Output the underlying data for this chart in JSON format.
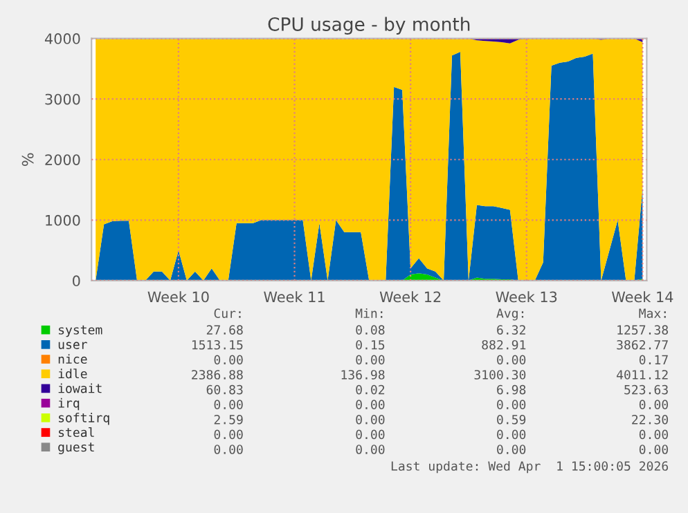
{
  "chart_data": {
    "type": "area",
    "stacked": true,
    "title": "CPU usage - by month",
    "ylabel": "%",
    "categories": [
      null,
      null,
      null,
      null,
      null,
      null,
      null,
      null,
      null,
      null,
      "Week 10",
      null,
      null,
      null,
      null,
      null,
      null,
      null,
      null,
      null,
      null,
      null,
      null,
      null,
      "Week 11",
      null,
      null,
      null,
      null,
      null,
      null,
      null,
      null,
      null,
      null,
      null,
      null,
      null,
      "Week 12",
      null,
      null,
      null,
      null,
      null,
      null,
      null,
      null,
      null,
      null,
      null,
      null,
      null,
      "Week 13",
      null,
      null,
      null,
      null,
      null,
      null,
      null,
      null,
      null,
      null,
      null,
      null,
      null,
      "Week 14"
    ],
    "ylim": [
      0,
      4000
    ],
    "yticks": [
      0,
      1000,
      2000,
      3000,
      4000
    ],
    "grid": true,
    "legend": "bottom",
    "series": [
      {
        "name": "system",
        "color": "#00cc00",
        "values": [
          0,
          0,
          0,
          0,
          0,
          0,
          0,
          0,
          0,
          0,
          0,
          0,
          0,
          0,
          0,
          0,
          0,
          0,
          0,
          0,
          0,
          0,
          0,
          0,
          0,
          0,
          0,
          0,
          0,
          0,
          0,
          0,
          0,
          0,
          0,
          0,
          0,
          0,
          100,
          120,
          100,
          50,
          0,
          0,
          0,
          0,
          50,
          30,
          30,
          20,
          20,
          0,
          0,
          0,
          0,
          0,
          0,
          0,
          0,
          0,
          0,
          0,
          0,
          0,
          0,
          0,
          30
        ]
      },
      {
        "name": "user",
        "color": "#0066b3",
        "values": [
          0,
          930,
          980,
          990,
          990,
          0,
          0,
          150,
          150,
          0,
          500,
          0,
          150,
          0,
          200,
          0,
          0,
          950,
          950,
          950,
          1000,
          1000,
          1000,
          1000,
          1000,
          1000,
          0,
          950,
          0,
          1000,
          800,
          800,
          800,
          0,
          0,
          0,
          3200,
          3150,
          100,
          250,
          100,
          100,
          0,
          3720,
          3780,
          0,
          1200,
          1200,
          1200,
          1180,
          1150,
          0,
          0,
          0,
          300,
          3550,
          3600,
          3620,
          3680,
          3700,
          3750,
          0,
          500,
          1000,
          0,
          0,
          1500
        ]
      },
      {
        "name": "nice",
        "color": "#ff8000",
        "values": [
          null,
          null,
          null,
          null,
          null,
          null,
          null,
          null,
          null,
          null,
          null,
          null,
          null,
          null,
          null,
          null,
          null,
          null,
          null,
          null,
          null,
          null,
          null,
          null,
          null,
          null,
          null,
          null,
          null,
          null,
          null,
          null,
          null,
          null,
          null,
          null,
          null,
          null,
          null,
          null,
          null,
          null,
          null,
          null,
          null,
          null,
          null,
          null,
          null,
          null,
          null,
          null,
          null,
          null,
          null,
          null,
          null,
          null,
          null,
          null,
          null,
          null,
          null,
          null,
          null,
          null,
          null
        ]
      },
      {
        "name": "idle",
        "color": "#ffcc00",
        "values": [
          4000,
          3070,
          3020,
          3010,
          3010,
          4000,
          4000,
          3850,
          3850,
          4000,
          3500,
          4000,
          3850,
          4000,
          3800,
          4000,
          4000,
          3050,
          3050,
          3050,
          3000,
          3000,
          3000,
          3000,
          3000,
          3000,
          4000,
          3050,
          4000,
          3000,
          3200,
          3200,
          3200,
          4000,
          4000,
          4000,
          800,
          850,
          3800,
          3630,
          3800,
          3850,
          4000,
          280,
          220,
          4000,
          2720,
          2730,
          2720,
          2740,
          2750,
          3980,
          4000,
          4000,
          3700,
          450,
          400,
          380,
          320,
          300,
          250,
          3980,
          3500,
          3000,
          4000,
          4000,
          2410
        ]
      },
      {
        "name": "iowait",
        "color": "#330099",
        "values": [
          0,
          0,
          0,
          0,
          0,
          0,
          0,
          0,
          0,
          0,
          0,
          0,
          0,
          0,
          0,
          0,
          0,
          0,
          0,
          0,
          0,
          0,
          0,
          0,
          0,
          0,
          0,
          0,
          0,
          0,
          0,
          0,
          0,
          0,
          0,
          0,
          0,
          0,
          0,
          0,
          0,
          0,
          0,
          0,
          0,
          0,
          30,
          40,
          50,
          60,
          80,
          20,
          0,
          0,
          0,
          0,
          0,
          0,
          0,
          0,
          0,
          20,
          0,
          0,
          0,
          0,
          60
        ]
      },
      {
        "name": "irq",
        "color": "#990099",
        "values": [
          null,
          null,
          null,
          null,
          null,
          null,
          null,
          null,
          null,
          null,
          null,
          null,
          null,
          null,
          null,
          null,
          null,
          null,
          null,
          null,
          null,
          null,
          null,
          null,
          null,
          null,
          null,
          null,
          null,
          null,
          null,
          null,
          null,
          null,
          null,
          null,
          null,
          null,
          null,
          null,
          null,
          null,
          null,
          null,
          null,
          null,
          null,
          null,
          null,
          null,
          null,
          null,
          null,
          null,
          null,
          null,
          null,
          null,
          null,
          null,
          null,
          null,
          null,
          null,
          null,
          null,
          null
        ]
      },
      {
        "name": "softirq",
        "color": "#ccff00",
        "values": [
          null,
          null,
          null,
          null,
          null,
          null,
          null,
          null,
          null,
          null,
          null,
          null,
          null,
          null,
          null,
          null,
          null,
          null,
          null,
          null,
          null,
          null,
          null,
          null,
          null,
          null,
          null,
          null,
          null,
          null,
          null,
          null,
          null,
          null,
          null,
          null,
          null,
          null,
          null,
          null,
          null,
          null,
          null,
          null,
          null,
          null,
          null,
          null,
          null,
          null,
          null,
          null,
          null,
          null,
          null,
          null,
          null,
          null,
          null,
          null,
          null,
          null,
          null,
          null,
          null,
          null,
          null
        ]
      },
      {
        "name": "steal",
        "color": "#ff0000",
        "values": [
          null,
          null,
          null,
          null,
          null,
          null,
          null,
          null,
          null,
          null,
          null,
          null,
          null,
          null,
          null,
          null,
          null,
          null,
          null,
          null,
          null,
          null,
          null,
          null,
          null,
          null,
          null,
          null,
          null,
          null,
          null,
          null,
          null,
          null,
          null,
          null,
          null,
          null,
          null,
          null,
          null,
          null,
          null,
          null,
          null,
          null,
          null,
          null,
          null,
          null,
          null,
          null,
          null,
          null,
          null,
          null,
          null,
          null,
          null,
          null,
          null,
          null,
          null,
          null,
          null,
          null,
          null
        ]
      },
      {
        "name": "guest",
        "color": "#888888",
        "values": [
          null,
          null,
          null,
          null,
          null,
          null,
          null,
          null,
          null,
          null,
          null,
          null,
          null,
          null,
          null,
          null,
          null,
          null,
          null,
          null,
          null,
          null,
          null,
          null,
          null,
          null,
          null,
          null,
          null,
          null,
          null,
          null,
          null,
          null,
          null,
          null,
          null,
          null,
          null,
          null,
          null,
          null,
          null,
          null,
          null,
          null,
          null,
          null,
          null,
          null,
          null,
          null,
          null,
          null,
          null,
          null,
          null,
          null,
          null,
          null,
          null,
          null,
          null,
          null,
          null,
          null,
          null
        ]
      }
    ],
    "annotations": [
      "Cur:",
      "Min:",
      "Avg:",
      "Max:",
      "27.68",
      "0.08",
      "6.32",
      "1257.38",
      "1513.15",
      "0.15",
      "882.91",
      "3862.77",
      "0.00",
      "0.00",
      "0.00",
      "0.17",
      "2386.88",
      "136.98",
      "3100.30",
      "4011.12",
      "60.83",
      "0.02",
      "6.98",
      "523.63",
      "0.00",
      "0.00",
      "0.00",
      "0.00",
      "2.59",
      "0.00",
      "0.59",
      "22.30",
      "0.00",
      "0.00",
      "0.00",
      "0.00",
      "0.00",
      "0.00",
      "0.00",
      "0.00",
      "Last update: Wed Apr  1 15:00:05 2026"
    ]
  }
}
